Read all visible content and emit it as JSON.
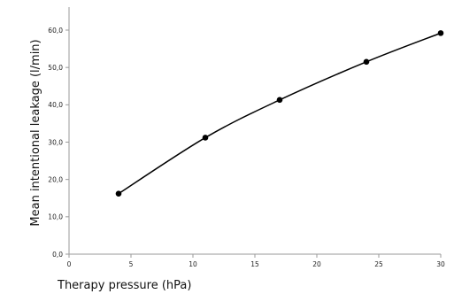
{
  "chart_data": {
    "type": "line",
    "title": "",
    "xlabel": "Therapy pressure (hPa)",
    "ylabel": "Mean intentional leakage (l/min)",
    "xlim": [
      0,
      30
    ],
    "ylim": [
      0,
      60
    ],
    "x_ticks": [
      0,
      5,
      10,
      15,
      20,
      25,
      30
    ],
    "x_tick_labels": [
      "0",
      "5",
      "10",
      "15",
      "20",
      "25",
      "30"
    ],
    "y_ticks": [
      0,
      10,
      20,
      30,
      40,
      50,
      60
    ],
    "y_tick_labels": [
      "0,0",
      "10,0",
      "20,0",
      "30,0",
      "40,0",
      "50,0",
      "60,0"
    ],
    "grid": false,
    "legend": "none",
    "series": [
      {
        "x": [
          4,
          11,
          17,
          24,
          30
        ],
        "y": [
          16.2,
          31.2,
          41.3,
          51.5,
          59.2
        ],
        "color": "#000000",
        "marker": "circle",
        "smooth": true
      }
    ]
  }
}
